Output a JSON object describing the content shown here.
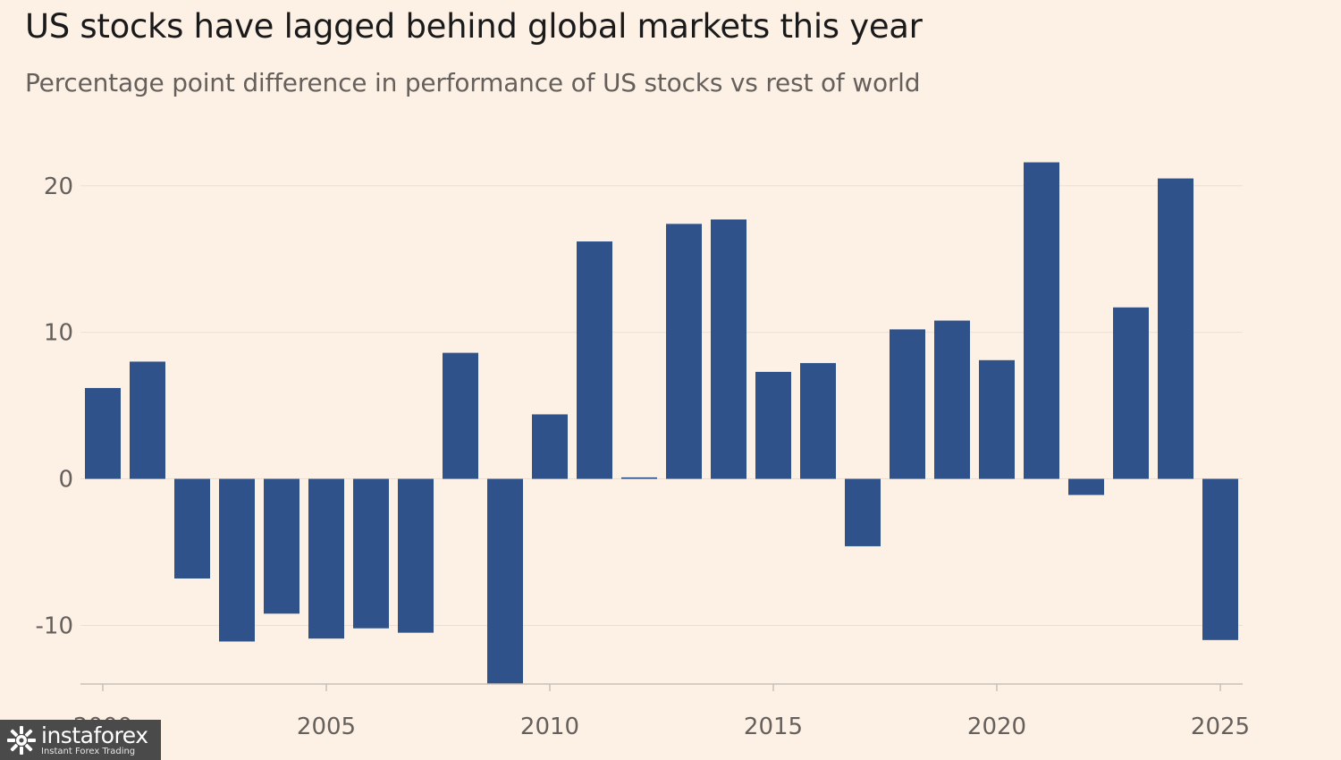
{
  "chart_data": {
    "type": "bar",
    "title": "US stocks have lagged behind global markets this year",
    "subtitle": "Percentage point difference in performance of US stocks vs rest of world",
    "xlabel": "",
    "ylabel": "",
    "categories": [
      2000,
      2001,
      2002,
      2003,
      2004,
      2005,
      2006,
      2007,
      2008,
      2009,
      2010,
      2011,
      2012,
      2013,
      2014,
      2015,
      2016,
      2017,
      2018,
      2019,
      2020,
      2021,
      2022,
      2023,
      2024,
      2025
    ],
    "values": [
      6.2,
      8.0,
      -6.8,
      -11.1,
      -9.2,
      -10.9,
      -10.2,
      -10.5,
      8.6,
      -14.0,
      4.4,
      16.2,
      0.1,
      17.4,
      17.7,
      7.3,
      7.9,
      -4.6,
      10.2,
      10.8,
      8.1,
      21.6,
      -1.1,
      11.7,
      20.5,
      -11.0
    ],
    "ylim": [
      -14,
      22
    ],
    "yticks": [
      -10,
      0,
      10,
      20
    ],
    "xticks": [
      2000,
      2005,
      2010,
      2015,
      2020,
      2025
    ],
    "grid": true,
    "bar_color": "#2e5289",
    "grid_color": "#eadfd3",
    "axis_color": "#c8c0b8"
  },
  "watermark": {
    "name": "instaforex",
    "tagline": "Instant Forex Trading"
  }
}
